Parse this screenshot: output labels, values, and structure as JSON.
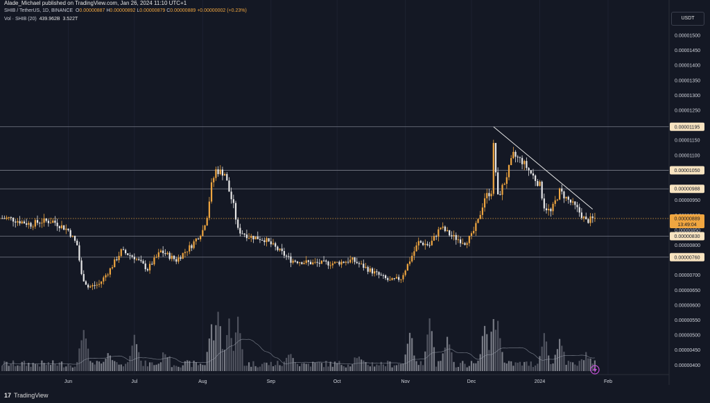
{
  "header": {
    "publisher": "Alade_Michael published on TradingView.com, Jan 26, 2024 11:10 UTC+1",
    "symbol": "SHIB / TetherUS, 1D, BINANCE",
    "open_label": "O",
    "open": "0.00000887",
    "high_label": "H",
    "high": "0.00000892",
    "low_label": "L",
    "low": "0.00000879",
    "close_label": "C",
    "close": "0.00000889",
    "change": "+0.00000002 (+0.23%)",
    "vol_label": "Vol · SHIB (20)",
    "vol_value": "439.962B",
    "vol_ma": "3.522T"
  },
  "currency_button": "USDT",
  "brand": {
    "logo": "17",
    "name": "TradingView"
  },
  "colors": {
    "background": "#141824",
    "up": "#f0a640",
    "down": "#e8e8e8",
    "level_line": "#7a7e8a",
    "price_line": "#f0a640",
    "trendline": "#e8e8e8"
  },
  "chart_data": {
    "type": "candlestick",
    "x_axis_labels": [
      "Jun",
      "Jul",
      "Aug",
      "Sep",
      "Oct",
      "Nov",
      "Dec",
      "2024",
      "Feb"
    ],
    "y_ticks": [
      "0.00001500",
      "0.00001450",
      "0.00001400",
      "0.00001350",
      "0.00001300",
      "0.00001250",
      "0.00001150",
      "0.00001100",
      "0.00000950",
      "0.00000900",
      "0.00000850",
      "0.00000800",
      "0.00000700",
      "0.00000650",
      "0.00000600",
      "0.00000550",
      "0.00000500",
      "0.00000450",
      "0.00000400"
    ],
    "y_range": [
      3.8e-06,
      1.53e-05
    ],
    "horizontal_levels": [
      {
        "label": "0.00001195",
        "value": 1.195e-05
      },
      {
        "label": "0.00001050",
        "value": 1.05e-05
      },
      {
        "label": "0.00000988",
        "value": 9.88e-06
      },
      {
        "label": "0.00000830",
        "value": 8.3e-06
      },
      {
        "label": "0.00000760",
        "value": 7.6e-06
      }
    ],
    "current_price": {
      "label": "0.00000889",
      "countdown": "13:49:04",
      "value": 8.89e-06
    },
    "trendline": [
      {
        "date": "2023-12-11",
        "price": 1.195e-05
      },
      {
        "date": "2024-01-25",
        "price": 9.2e-06
      }
    ],
    "price_points": [
      [
        "2023-05-05",
        8.9e-06
      ],
      [
        "2023-05-15",
        8.7e-06
      ],
      [
        "2023-05-20",
        8.8e-06
      ],
      [
        "2023-05-25",
        8.8e-06
      ],
      [
        "2023-06-01",
        8.5e-06
      ],
      [
        "2023-06-05",
        8e-06
      ],
      [
        "2023-06-07",
        7e-06
      ],
      [
        "2023-06-10",
        6.6e-06
      ],
      [
        "2023-06-15",
        6.7e-06
      ],
      [
        "2023-06-20",
        7.2e-06
      ],
      [
        "2023-06-25",
        7.8e-06
      ],
      [
        "2023-07-01",
        7.6e-06
      ],
      [
        "2023-07-07",
        7.2e-06
      ],
      [
        "2023-07-13",
        7.8e-06
      ],
      [
        "2023-07-20",
        7.5e-06
      ],
      [
        "2023-07-27",
        8e-06
      ],
      [
        "2023-08-01",
        8.5e-06
      ],
      [
        "2023-08-03",
        9e-06
      ],
      [
        "2023-08-05",
        1e-05
      ],
      [
        "2023-08-07",
        1.05e-05
      ],
      [
        "2023-08-11",
        1.04e-05
      ],
      [
        "2023-08-13",
        9.8e-06
      ],
      [
        "2023-08-15",
        9.3e-06
      ],
      [
        "2023-08-17",
        8.5e-06
      ],
      [
        "2023-08-22",
        8.3e-06
      ],
      [
        "2023-08-29",
        8.2e-06
      ],
      [
        "2023-09-05",
        7.8e-06
      ],
      [
        "2023-09-10",
        7.5e-06
      ],
      [
        "2023-09-20",
        7.4e-06
      ],
      [
        "2023-09-30",
        7.4e-06
      ],
      [
        "2023-10-08",
        7.5e-06
      ],
      [
        "2023-10-15",
        7.2e-06
      ],
      [
        "2023-10-20",
        7e-06
      ],
      [
        "2023-10-25",
        6.8e-06
      ],
      [
        "2023-10-30",
        6.9e-06
      ],
      [
        "2023-11-03",
        7.5e-06
      ],
      [
        "2023-11-07",
        8.1e-06
      ],
      [
        "2023-11-12",
        8e-06
      ],
      [
        "2023-11-17",
        8.6e-06
      ],
      [
        "2023-11-22",
        8.3e-06
      ],
      [
        "2023-11-28",
        8.1e-06
      ],
      [
        "2023-12-01",
        8.3e-06
      ],
      [
        "2023-12-04",
        8.8e-06
      ],
      [
        "2023-12-07",
        9.6e-06
      ],
      [
        "2023-12-10",
        9.8e-06
      ],
      [
        "2023-12-11",
        1.13e-05
      ],
      [
        "2023-12-13",
        9.6e-06
      ],
      [
        "2023-12-16",
        1.01e-05
      ],
      [
        "2023-12-20",
        1.1e-05
      ],
      [
        "2023-12-24",
        1.08e-05
      ],
      [
        "2023-12-28",
        1.04e-05
      ],
      [
        "2024-01-01",
        1e-05
      ],
      [
        "2024-01-03",
        9.3e-06
      ],
      [
        "2024-01-06",
        9.1e-06
      ],
      [
        "2024-01-10",
        9.8e-06
      ],
      [
        "2024-01-14",
        9.5e-06
      ],
      [
        "2024-01-18",
        9.2e-06
      ],
      [
        "2024-01-22",
        8.8e-06
      ],
      [
        "2024-01-26",
        8.9e-06
      ]
    ],
    "volume_points": [
      [
        "2023-06-08",
        0.41
      ],
      [
        "2023-06-20",
        0.12
      ],
      [
        "2023-07-01",
        0.36
      ],
      [
        "2023-07-15",
        0.14
      ],
      [
        "2023-08-05",
        0.42
      ],
      [
        "2023-08-08",
        0.6
      ],
      [
        "2023-08-13",
        0.48
      ],
      [
        "2023-08-17",
        0.5
      ],
      [
        "2023-09-10",
        0.14
      ],
      [
        "2023-10-10",
        0.09
      ],
      [
        "2023-11-03",
        0.37
      ],
      [
        "2023-11-12",
        0.53
      ],
      [
        "2023-11-20",
        0.28
      ],
      [
        "2023-12-07",
        0.44
      ],
      [
        "2023-12-11",
        0.53
      ],
      [
        "2023-12-13",
        0.48
      ],
      [
        "2024-01-03",
        0.34
      ],
      [
        "2024-01-10",
        0.3
      ],
      [
        "2024-01-22",
        0.12
      ]
    ]
  }
}
